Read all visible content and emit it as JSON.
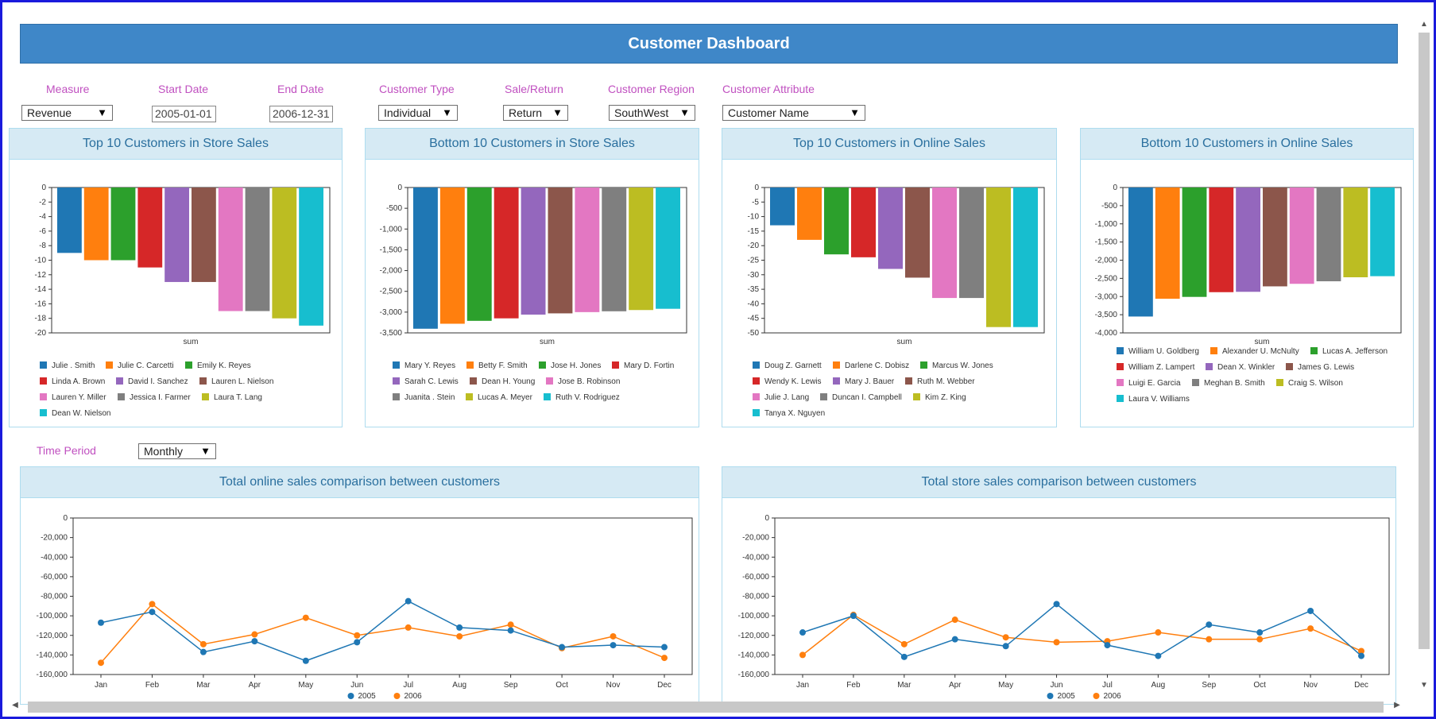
{
  "title": "Customer Dashboard",
  "filters": {
    "measure": {
      "label": "Measure",
      "value": "Revenue"
    },
    "start_date": {
      "label": "Start Date",
      "value": "2005-01-01"
    },
    "end_date": {
      "label": "End Date",
      "value": "2006-12-31"
    },
    "customer_type": {
      "label": "Customer Type",
      "value": "Individual"
    },
    "sale_return": {
      "label": "Sale/Return",
      "value": "Return"
    },
    "customer_region": {
      "label": "Customer Region",
      "value": "SouthWest"
    },
    "customer_attribute": {
      "label": "Customer Attribute",
      "value": "Customer Name"
    },
    "time_period": {
      "label": "Time Period",
      "value": "Monthly"
    }
  },
  "icons": {
    "dropdown": "triangle-down-icon",
    "scroll_up": "triangle-up-icon",
    "scroll_down": "triangle-down-icon",
    "scroll_left": "triangle-left-icon",
    "scroll_right": "triangle-right-icon"
  },
  "colors": {
    "accent": "#3f87c8",
    "filter_label": "#c050c0",
    "panel_title": "#2a6f9e",
    "series_2005": "#1f77b4",
    "series_2006": "#ff7f0e"
  },
  "palette": [
    "#1f77b4",
    "#ff7f0e",
    "#2ca02c",
    "#d62728",
    "#9467bd",
    "#8c564b",
    "#e377c2",
    "#7f7f7f",
    "#bcbd22",
    "#17becf"
  ],
  "panels": {
    "top_store": "Top 10 Customers in Store Sales",
    "bottom_store": "Bottom 10 Customers in Store Sales",
    "top_online": "Top 10 Customers in Online Sales",
    "bottom_online": "Bottom 10 Customers in Online Sales",
    "online_compare": "Total online sales comparison between customers",
    "store_compare": "Total store sales comparison between customers"
  },
  "chart_data": [
    {
      "type": "bar",
      "title": "Top 10 Customers in Store Sales",
      "xlabel": "sum",
      "ylim": [
        -20,
        0
      ],
      "yticks": [
        0,
        -2,
        -4,
        -6,
        -8,
        -10,
        -12,
        -14,
        -16,
        -18,
        -20
      ],
      "categories": [
        "Julie . Smith",
        "Julie C. Carcetti",
        "Emily K. Reyes",
        "Linda A. Brown",
        "David I. Sanchez",
        "Lauren L. Nielson",
        "Lauren Y. Miller",
        "Jessica I. Farmer",
        "Laura T. Lang",
        "Dean W. Nielson"
      ],
      "values": [
        -9,
        -10,
        -10,
        -11,
        -13,
        -13,
        -17,
        -17,
        -18,
        -19
      ]
    },
    {
      "type": "bar",
      "title": "Bottom 10 Customers in Store Sales",
      "xlabel": "sum",
      "ylim": [
        -3500,
        0
      ],
      "yticks": [
        0,
        -500,
        -1000,
        -1500,
        -2000,
        -2500,
        -3000,
        -3500
      ],
      "categories": [
        "Mary Y. Reyes",
        "Betty F. Smith",
        "Jose H. Jones",
        "Mary D. Fortin",
        "Sarah C. Lewis",
        "Dean H. Young",
        "Jose B. Robinson",
        "Juanita . Stein",
        "Lucas A. Meyer",
        "Ruth V. Rodriguez"
      ],
      "values": [
        -3400,
        -3280,
        -3210,
        -3150,
        -3060,
        -3030,
        -3000,
        -2980,
        -2950,
        -2920
      ]
    },
    {
      "type": "bar",
      "title": "Top 10 Customers in Online Sales",
      "xlabel": "sum",
      "ylim": [
        -50,
        0
      ],
      "yticks": [
        0,
        -5,
        -10,
        -15,
        -20,
        -25,
        -30,
        -35,
        -40,
        -45,
        -50
      ],
      "categories": [
        "Doug Z. Garnett",
        "Darlene C. Dobisz",
        "Marcus W. Jones",
        "Wendy K. Lewis",
        "Mary J. Bauer",
        "Ruth M. Webber",
        "Julie J. Lang",
        "Duncan I. Campbell",
        "Kim Z. King",
        "Tanya X. Nguyen"
      ],
      "values": [
        -13,
        -18,
        -23,
        -24,
        -28,
        -31,
        -38,
        -38,
        -48,
        -48
      ]
    },
    {
      "type": "bar",
      "title": "Bottom 10 Customers in Online Sales",
      "xlabel": "sum",
      "ylim": [
        -4000,
        0
      ],
      "yticks": [
        0,
        -500,
        -1000,
        -1500,
        -2000,
        -2500,
        -3000,
        -3500,
        -4000
      ],
      "categories": [
        "William U. Goldberg",
        "Alexander U. McNulty",
        "Lucas A. Jefferson",
        "William Z. Lampert",
        "Dean X. Winkler",
        "James G. Lewis",
        "Luigi E. Garcia",
        "Meghan B. Smith",
        "Craig S. Wilson",
        "Laura V. Williams"
      ],
      "values": [
        -3550,
        -3060,
        -3010,
        -2880,
        -2870,
        -2720,
        -2650,
        -2580,
        -2470,
        -2440
      ]
    },
    {
      "type": "line",
      "title": "Total online sales comparison between customers",
      "ylim": [
        -160000,
        0
      ],
      "yticks": [
        0,
        -20000,
        -40000,
        -60000,
        -80000,
        -100000,
        -120000,
        -140000,
        -160000
      ],
      "categories": [
        "Jan",
        "Feb",
        "Mar",
        "Apr",
        "May",
        "Jun",
        "Jul",
        "Aug",
        "Sep",
        "Oct",
        "Nov",
        "Dec"
      ],
      "series": [
        {
          "name": "2005",
          "values": [
            -107000,
            -96000,
            -137000,
            -126000,
            -146000,
            -127000,
            -85000,
            -112000,
            -115000,
            -132000,
            -130000,
            -132000
          ]
        },
        {
          "name": "2006",
          "values": [
            -148000,
            -88000,
            -129000,
            -119000,
            -102000,
            -120000,
            -112000,
            -121000,
            -109000,
            -133000,
            -121000,
            -143000
          ]
        }
      ]
    },
    {
      "type": "line",
      "title": "Total store sales comparison between customers",
      "ylim": [
        -160000,
        0
      ],
      "yticks": [
        0,
        -20000,
        -40000,
        -60000,
        -80000,
        -100000,
        -120000,
        -140000,
        -160000
      ],
      "categories": [
        "Jan",
        "Feb",
        "Mar",
        "Apr",
        "May",
        "Jun",
        "Jul",
        "Aug",
        "Sep",
        "Oct",
        "Nov",
        "Dec"
      ],
      "series": [
        {
          "name": "2005",
          "values": [
            -117000,
            -100000,
            -142000,
            -124000,
            -131000,
            -88000,
            -130000,
            -141000,
            -109000,
            -117000,
            -95000,
            -141000
          ]
        },
        {
          "name": "2006",
          "values": [
            -140000,
            -99000,
            -129000,
            -104000,
            -122000,
            -127000,
            -126000,
            -117000,
            -124000,
            -124000,
            -113000,
            -136000
          ]
        }
      ]
    }
  ]
}
